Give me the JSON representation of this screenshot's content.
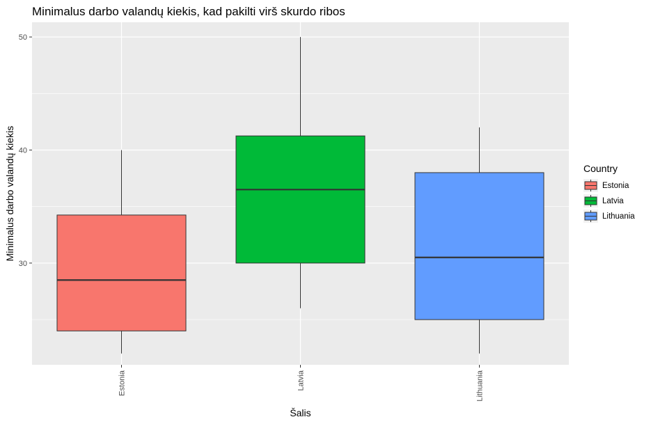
{
  "chart_data": {
    "type": "boxplot",
    "title": "Minimalus darbo valandų kiekis, kad pakilti virš skurdo ribos",
    "xlabel": "Šalis",
    "ylabel": "Minimalus darbo valandų kiekis",
    "ylim": [
      21,
      51.3
    ],
    "yticks": [
      30,
      40,
      50
    ],
    "grid": true,
    "legend": {
      "title": "Country",
      "position": "right"
    },
    "categories": [
      "Estonia",
      "Latvia",
      "Lithuania"
    ],
    "boxes": [
      {
        "name": "Estonia",
        "color": "#F8766D",
        "min": 22,
        "q1": 24,
        "median": 28.5,
        "q3": 34.25,
        "max": 40
      },
      {
        "name": "Latvia",
        "color": "#00BA38",
        "min": 26,
        "q1": 30,
        "median": 36.5,
        "q3": 41.25,
        "max": 50
      },
      {
        "name": "Lithuania",
        "color": "#619CFF",
        "min": 22,
        "q1": 25,
        "median": 30.5,
        "q3": 38,
        "max": 42
      }
    ]
  }
}
